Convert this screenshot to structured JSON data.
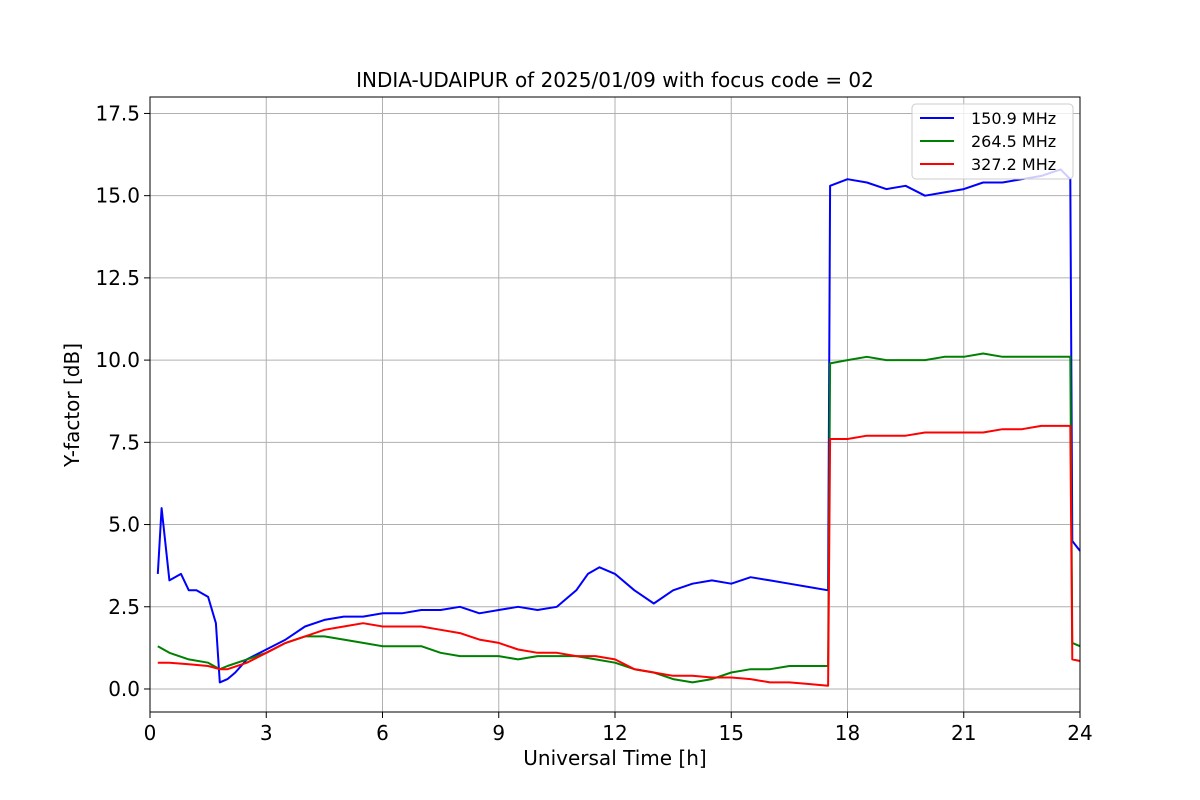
{
  "chart_data": {
    "type": "line",
    "title": "INDIA-UDAIPUR of 2025/01/09 with focus code = 02",
    "xlabel": "Universal Time [h]",
    "ylabel": "Y-factor [dB]",
    "xlim": [
      0,
      24
    ],
    "ylim": [
      -0.7,
      18.0
    ],
    "xticks": [
      0,
      3,
      6,
      9,
      12,
      15,
      18,
      21,
      24
    ],
    "xtick_labels": [
      "0",
      "3",
      "6",
      "9",
      "12",
      "15",
      "18",
      "21",
      "24"
    ],
    "yticks": [
      0.0,
      2.5,
      5.0,
      7.5,
      10.0,
      12.5,
      15.0,
      17.5
    ],
    "ytick_labels": [
      "0.0",
      "2.5",
      "5.0",
      "7.5",
      "10.0",
      "12.5",
      "15.0",
      "17.5"
    ],
    "grid": true,
    "legend_position": "top-right",
    "series": [
      {
        "name": "150.9 MHz",
        "color": "#0000ff",
        "x": [
          0.2,
          0.3,
          0.5,
          0.8,
          1.0,
          1.2,
          1.5,
          1.7,
          1.8,
          2.0,
          2.2,
          2.5,
          3.0,
          3.5,
          4.0,
          4.5,
          5.0,
          5.5,
          6.0,
          6.5,
          7.0,
          7.5,
          8.0,
          8.5,
          9.0,
          9.5,
          10.0,
          10.5,
          11.0,
          11.3,
          11.6,
          12.0,
          12.5,
          13.0,
          13.5,
          14.0,
          14.5,
          15.0,
          15.5,
          16.0,
          16.5,
          17.0,
          17.5,
          17.55,
          18.0,
          18.5,
          19.0,
          19.5,
          20.0,
          20.5,
          21.0,
          21.5,
          22.0,
          22.5,
          23.0,
          23.5,
          23.75,
          23.8,
          24.0
        ],
        "y": [
          3.5,
          5.5,
          3.3,
          3.5,
          3.0,
          3.0,
          2.8,
          2.0,
          0.2,
          0.3,
          0.5,
          0.9,
          1.2,
          1.5,
          1.9,
          2.1,
          2.2,
          2.2,
          2.3,
          2.3,
          2.4,
          2.4,
          2.5,
          2.3,
          2.4,
          2.5,
          2.4,
          2.5,
          3.0,
          3.5,
          3.7,
          3.5,
          3.0,
          2.6,
          3.0,
          3.2,
          3.3,
          3.2,
          3.4,
          3.3,
          3.2,
          3.1,
          3.0,
          15.3,
          15.5,
          15.4,
          15.2,
          15.3,
          15.0,
          15.1,
          15.2,
          15.4,
          15.4,
          15.5,
          15.6,
          15.8,
          15.5,
          4.5,
          4.2
        ]
      },
      {
        "name": "264.5 MHz",
        "color": "#008000",
        "x": [
          0.2,
          0.5,
          1.0,
          1.5,
          1.8,
          2.0,
          2.5,
          3.0,
          3.5,
          4.0,
          4.5,
          5.0,
          5.5,
          6.0,
          6.5,
          7.0,
          7.5,
          8.0,
          8.5,
          9.0,
          9.5,
          10.0,
          10.5,
          11.0,
          11.5,
          12.0,
          12.5,
          13.0,
          13.5,
          14.0,
          14.5,
          15.0,
          15.5,
          16.0,
          16.5,
          17.0,
          17.5,
          17.55,
          18.0,
          18.5,
          19.0,
          19.5,
          20.0,
          20.5,
          21.0,
          21.5,
          22.0,
          22.5,
          23.0,
          23.5,
          23.75,
          23.8,
          24.0
        ],
        "y": [
          1.3,
          1.1,
          0.9,
          0.8,
          0.6,
          0.7,
          0.9,
          1.1,
          1.4,
          1.6,
          1.6,
          1.5,
          1.4,
          1.3,
          1.3,
          1.3,
          1.1,
          1.0,
          1.0,
          1.0,
          0.9,
          1.0,
          1.0,
          1.0,
          0.9,
          0.8,
          0.6,
          0.5,
          0.3,
          0.2,
          0.3,
          0.5,
          0.6,
          0.6,
          0.7,
          0.7,
          0.7,
          9.9,
          10.0,
          10.1,
          10.0,
          10.0,
          10.0,
          10.1,
          10.1,
          10.2,
          10.1,
          10.1,
          10.1,
          10.1,
          10.1,
          1.4,
          1.3
        ]
      },
      {
        "name": "327.2 MHz",
        "color": "#ff0000",
        "x": [
          0.2,
          0.5,
          1.0,
          1.5,
          1.8,
          2.0,
          2.5,
          3.0,
          3.5,
          4.0,
          4.5,
          5.0,
          5.5,
          6.0,
          6.5,
          7.0,
          7.5,
          8.0,
          8.5,
          9.0,
          9.5,
          10.0,
          10.5,
          11.0,
          11.5,
          12.0,
          12.5,
          13.0,
          13.5,
          14.0,
          14.5,
          15.0,
          15.5,
          16.0,
          16.5,
          17.0,
          17.5,
          17.55,
          18.0,
          18.5,
          19.0,
          19.5,
          20.0,
          20.5,
          21.0,
          21.5,
          22.0,
          22.5,
          23.0,
          23.5,
          23.75,
          23.8,
          24.0
        ],
        "y": [
          0.8,
          0.8,
          0.75,
          0.7,
          0.6,
          0.6,
          0.8,
          1.1,
          1.4,
          1.6,
          1.8,
          1.9,
          2.0,
          1.9,
          1.9,
          1.9,
          1.8,
          1.7,
          1.5,
          1.4,
          1.2,
          1.1,
          1.1,
          1.0,
          1.0,
          0.9,
          0.6,
          0.5,
          0.4,
          0.4,
          0.35,
          0.35,
          0.3,
          0.2,
          0.2,
          0.15,
          0.1,
          7.6,
          7.6,
          7.7,
          7.7,
          7.7,
          7.8,
          7.8,
          7.8,
          7.8,
          7.9,
          7.9,
          8.0,
          8.0,
          8.0,
          0.9,
          0.85
        ]
      }
    ]
  }
}
